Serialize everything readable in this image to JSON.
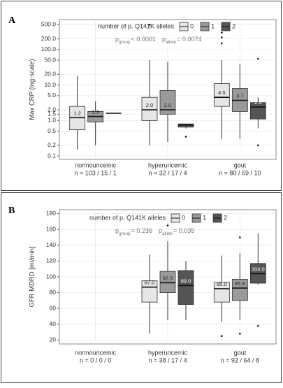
{
  "chart_data": [
    {
      "type": "box",
      "panel_label": "A",
      "y_label": "Max CRP (log-scale)",
      "log_y": true,
      "grid": true,
      "legend_title": "number of p. Q141K alleles",
      "annotations": [
        {
          "symbol": "p",
          "subscript": "group",
          "text": "< 0.0001"
        },
        {
          "symbol": "p",
          "subscript": "allele",
          "text": "= 0.0074"
        }
      ],
      "categories": [
        "normouricemic",
        "hyperuricemic",
        "gout"
      ],
      "sample_sizes": [
        "n = 103 / 15 / 1",
        "n = 32 / 17 / 4",
        "n = 80 / 59 / 10"
      ],
      "ylim": [
        0.08,
        700
      ],
      "yticks": [
        0.1,
        0.2,
        0.5,
        {
          "value": 1,
          "label": "1.0"
        },
        1.5,
        {
          "value": 2,
          "label": "2.0"
        },
        {
          "value": 5,
          "label": "5.0"
        },
        {
          "value": 10,
          "label": "10.0"
        },
        {
          "value": 20,
          "label": "20.0"
        },
        {
          "value": 50,
          "label": "50.0"
        },
        {
          "value": 100,
          "label": "100.0"
        },
        {
          "value": 200,
          "label": "200.0"
        },
        {
          "value": 500,
          "label": "500.0"
        }
      ],
      "series": [
        {
          "name": "0",
          "color": "#e6e6e6",
          "whisker_low": [
            0.15,
            0.2,
            0.3
          ],
          "q1": [
            0.55,
            1.0,
            2.5
          ],
          "median": [
            1.2,
            2.0,
            4.5
          ],
          "q3": [
            2.5,
            4.5,
            11
          ],
          "whisker_high": [
            18,
            50,
            50
          ],
          "outliers": [
            [],
            [
              500
            ],
            [
              150,
              220,
              300
            ]
          ],
          "value_labels": [
            "1.2",
            "2.0",
            "4.5"
          ]
        },
        {
          "name": "1",
          "color": "#9a9a9a",
          "whisker_low": [
            0.2,
            0.25,
            0.3
          ],
          "q1": [
            0.9,
            1.5,
            1.8
          ],
          "median": [
            1.3,
            2.0,
            3.7
          ],
          "q3": [
            1.8,
            7,
            8
          ],
          "whisker_high": [
            3.5,
            45,
            40
          ],
          "outliers": [
            [],
            [],
            []
          ],
          "value_labels": [
            "1.3",
            "2.0",
            "3.7"
          ]
        },
        {
          "name": "2",
          "color": "#555555",
          "whisker_low": [
            1.6,
            0.6,
            0.6
          ],
          "q1": [
            1.6,
            0.65,
            1.1
          ],
          "median": [
            1.6,
            0.75,
            2.4
          ],
          "q3": [
            1.6,
            0.8,
            3.2
          ],
          "whisker_high": [
            1.6,
            0.8,
            4.5
          ],
          "outliers": [
            [],
            [
              0.35
            ],
            [
              55,
              0.2
            ]
          ],
          "value_labels": [
            "1.6",
            "0.8",
            "2.4"
          ]
        }
      ]
    },
    {
      "type": "box",
      "panel_label": "B",
      "y_label": "GFR MDRD [ml/min]",
      "log_y": false,
      "grid": true,
      "legend_title": "number of p. Q141K alleles",
      "annotations": [
        {
          "symbol": "p",
          "subscript": "group",
          "text": "= 0.236"
        },
        {
          "symbol": "p",
          "subscript": "allele",
          "text": "= 0.035"
        }
      ],
      "categories": [
        "normouricemic",
        "hyperuricemic",
        "gout"
      ],
      "sample_sizes": [
        "n = 0 / 0 / 0",
        "n = 38 / 17 / 4",
        "n = 92 / 64 / 8"
      ],
      "ylim": [
        15,
        185
      ],
      "yticks": [
        20,
        40,
        60,
        80,
        100,
        120,
        140,
        160,
        180
      ],
      "series": [
        {
          "name": "0",
          "color": "#e6e6e6",
          "whisker_low": [
            null,
            28,
            43
          ],
          "q1": [
            null,
            68,
            68
          ],
          "median": [
            null,
            87,
            85
          ],
          "q3": [
            null,
            95,
            93
          ],
          "whisker_high": [
            null,
            128,
            127
          ],
          "outliers": [
            [],
            [],
            [
              25
            ]
          ],
          "value_labels": [
            null,
            "87.0",
            "85.0"
          ]
        },
        {
          "name": "1",
          "color": "#9a9a9a",
          "whisker_low": [
            null,
            45,
            45
          ],
          "q1": [
            null,
            80,
            70
          ],
          "median": [
            null,
            92.5,
            85.8
          ],
          "q3": [
            null,
            107,
            97
          ],
          "whisker_high": [
            null,
            145,
            130
          ],
          "outliers": [
            [],
            [
              165
            ],
            [
              150,
              28
            ]
          ],
          "value_labels": [
            null,
            "92.5",
            "85.8"
          ]
        },
        {
          "name": "2",
          "color": "#555555",
          "whisker_low": [
            null,
            45,
            90
          ],
          "q1": [
            null,
            65,
            92
          ],
          "median": [
            null,
            89,
            104
          ],
          "q3": [
            null,
            108,
            117
          ],
          "whisker_high": [
            null,
            120,
            155
          ],
          "outliers": [
            [],
            [],
            [
              38
            ]
          ],
          "value_labels": [
            null,
            "89.0",
            "104.0"
          ]
        }
      ]
    }
  ]
}
